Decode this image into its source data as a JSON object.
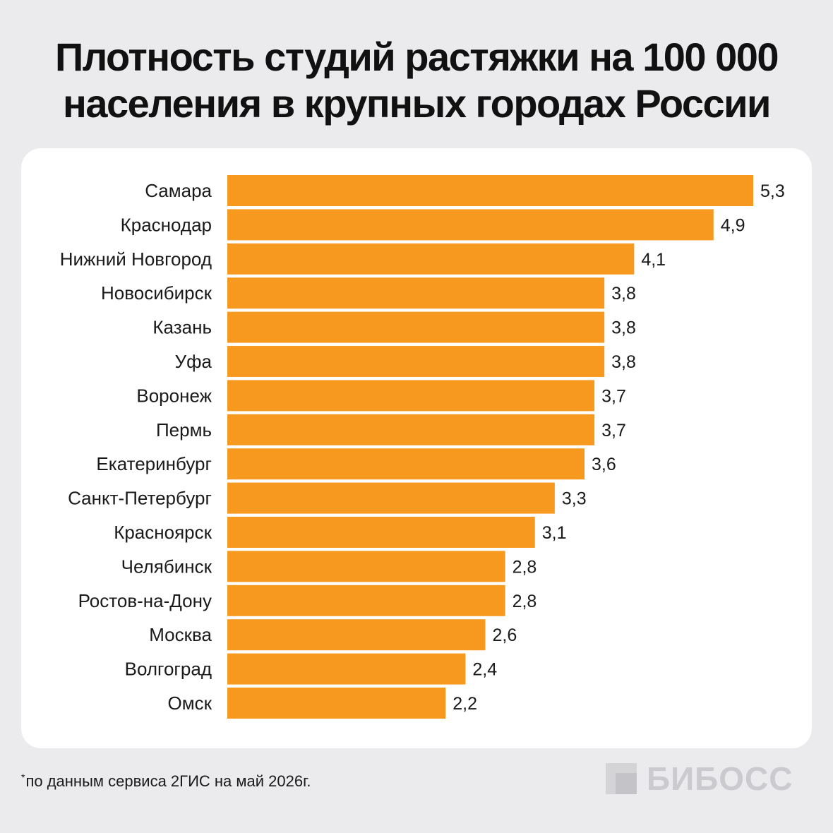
{
  "title": {
    "line1": "Плотность студий растяжки на 100 000",
    "line2": "населения в крупных городах России"
  },
  "footnote": {
    "mark": "*",
    "text": "по данным сервиса 2ГИС на май 2026г."
  },
  "logo": {
    "text": "БИБОСС",
    "icon": "square-logo-icon"
  },
  "colors": {
    "bar": "#f7991f",
    "background": "#ebebee",
    "card": "#ffffff"
  },
  "chart_data": {
    "type": "bar",
    "orientation": "horizontal",
    "categories": [
      "Самара",
      "Краснодар",
      "Нижний Новгород",
      "Новосибирск",
      "Казань",
      "Уфа",
      "Воронеж",
      "Пермь",
      "Екатеринбург",
      "Санкт-Петербург",
      "Красноярск",
      "Челябинск",
      "Ростов-на-Дону",
      "Москва",
      "Волгоград",
      "Омск"
    ],
    "values": [
      5.3,
      4.9,
      4.1,
      3.8,
      3.8,
      3.8,
      3.7,
      3.7,
      3.6,
      3.3,
      3.1,
      2.8,
      2.8,
      2.6,
      2.4,
      2.2
    ],
    "value_labels": [
      "5,3",
      "4,9",
      "4,1",
      "3,8",
      "3,8",
      "3,8",
      "3,7",
      "3,7",
      "3,6",
      "3,3",
      "3,1",
      "2,8",
      "2,8",
      "2,6",
      "2,4",
      "2,2"
    ],
    "title": "Плотность студий растяжки на 100 000 населения в крупных городах России",
    "xlim": [
      0,
      5.3
    ],
    "grid": false,
    "legend": "none"
  }
}
